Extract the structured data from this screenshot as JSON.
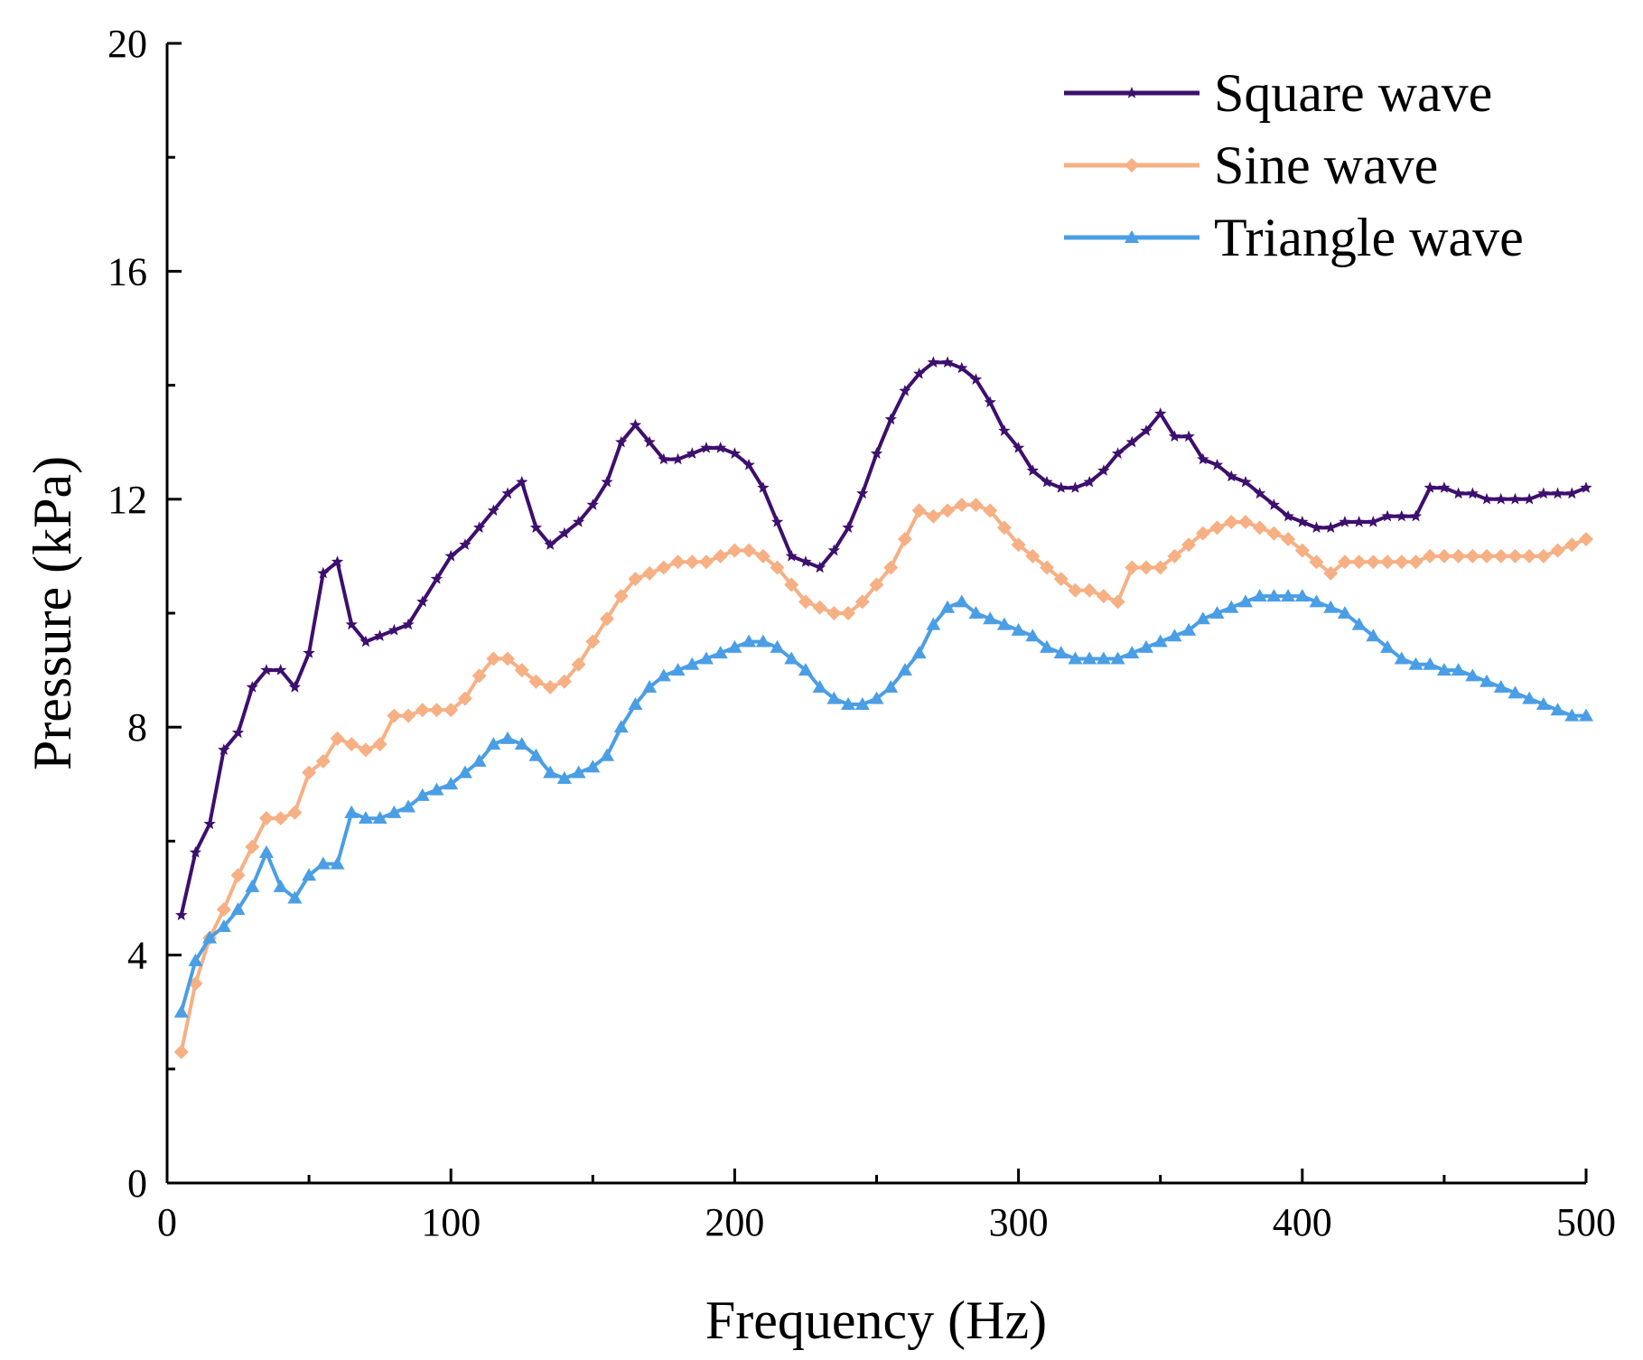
{
  "chart_data": {
    "type": "line",
    "title": "",
    "xlabel": "Frequency (Hz)",
    "ylabel": "Pressure (kPa)",
    "xlim": [
      0,
      500
    ],
    "ylim": [
      0,
      20
    ],
    "xticks": [
      0,
      100,
      200,
      300,
      400,
      500
    ],
    "yticks": [
      0,
      4,
      8,
      12,
      16,
      20
    ],
    "grid": false,
    "legend_position": "top-right",
    "x": [
      5,
      10,
      15,
      20,
      25,
      30,
      35,
      40,
      45,
      50,
      55,
      60,
      65,
      70,
      75,
      80,
      85,
      90,
      95,
      100,
      105,
      110,
      115,
      120,
      125,
      130,
      135,
      140,
      145,
      150,
      155,
      160,
      165,
      170,
      175,
      180,
      185,
      190,
      195,
      200,
      205,
      210,
      215,
      220,
      225,
      230,
      235,
      240,
      245,
      250,
      255,
      260,
      265,
      270,
      275,
      280,
      285,
      290,
      295,
      300,
      305,
      310,
      315,
      320,
      325,
      330,
      335,
      340,
      345,
      350,
      355,
      360,
      365,
      370,
      375,
      380,
      385,
      390,
      395,
      400,
      405,
      410,
      415,
      420,
      425,
      430,
      435,
      440,
      445,
      450,
      455,
      460,
      465,
      470,
      475,
      480,
      485,
      490,
      495,
      500
    ],
    "series": [
      {
        "name": "Square wave",
        "color": "#3d0f6e",
        "marker": "star",
        "values": [
          4.7,
          5.8,
          6.3,
          7.6,
          7.9,
          8.7,
          9.0,
          9.0,
          8.7,
          9.3,
          10.7,
          10.9,
          9.8,
          9.5,
          9.6,
          9.7,
          9.8,
          10.2,
          10.6,
          11.0,
          11.2,
          11.5,
          11.8,
          12.1,
          12.3,
          11.5,
          11.2,
          11.4,
          11.6,
          11.9,
          12.3,
          13.0,
          13.3,
          13.0,
          12.7,
          12.7,
          12.8,
          12.9,
          12.9,
          12.8,
          12.6,
          12.2,
          11.6,
          11.0,
          10.9,
          10.8,
          11.1,
          11.5,
          12.1,
          12.8,
          13.4,
          13.9,
          14.2,
          14.4,
          14.4,
          14.3,
          14.1,
          13.7,
          13.2,
          12.9,
          12.5,
          12.3,
          12.2,
          12.2,
          12.3,
          12.5,
          12.8,
          13.0,
          13.2,
          13.5,
          13.1,
          13.1,
          12.7,
          12.6,
          12.4,
          12.3,
          12.1,
          11.9,
          11.7,
          11.6,
          11.5,
          11.5,
          11.6,
          11.6,
          11.6,
          11.7,
          11.7,
          11.7,
          12.2,
          12.2,
          12.1,
          12.1,
          12.0,
          12.0,
          12.0,
          12.0,
          12.1,
          12.1,
          12.1,
          12.2
        ]
      },
      {
        "name": "Sine wave",
        "color": "#f6b084",
        "marker": "diamond",
        "values": [
          2.3,
          3.5,
          4.3,
          4.8,
          5.4,
          5.9,
          6.4,
          6.4,
          6.5,
          7.2,
          7.4,
          7.8,
          7.7,
          7.6,
          7.7,
          8.2,
          8.2,
          8.3,
          8.3,
          8.3,
          8.5,
          8.9,
          9.2,
          9.2,
          9.0,
          8.8,
          8.7,
          8.8,
          9.1,
          9.5,
          9.9,
          10.3,
          10.6,
          10.7,
          10.8,
          10.9,
          10.9,
          10.9,
          11.0,
          11.1,
          11.1,
          11.0,
          10.8,
          10.5,
          10.2,
          10.1,
          10.0,
          10.0,
          10.2,
          10.5,
          10.8,
          11.3,
          11.8,
          11.7,
          11.8,
          11.9,
          11.9,
          11.8,
          11.5,
          11.2,
          11.0,
          10.8,
          10.6,
          10.4,
          10.4,
          10.3,
          10.2,
          10.8,
          10.8,
          10.8,
          11.0,
          11.2,
          11.4,
          11.5,
          11.6,
          11.6,
          11.5,
          11.4,
          11.3,
          11.1,
          10.9,
          10.7,
          10.9,
          10.9,
          10.9,
          10.9,
          10.9,
          10.9,
          11.0,
          11.0,
          11.0,
          11.0,
          11.0,
          11.0,
          11.0,
          11.0,
          11.0,
          11.1,
          11.2,
          11.3
        ]
      },
      {
        "name": "Triangle wave",
        "color": "#4a9ee5",
        "marker": "triangle",
        "values": [
          3.0,
          3.9,
          4.3,
          4.5,
          4.8,
          5.2,
          5.8,
          5.2,
          5.0,
          5.4,
          5.6,
          5.6,
          6.5,
          6.4,
          6.4,
          6.5,
          6.6,
          6.8,
          6.9,
          7.0,
          7.2,
          7.4,
          7.7,
          7.8,
          7.7,
          7.5,
          7.2,
          7.1,
          7.2,
          7.3,
          7.5,
          8.0,
          8.4,
          8.7,
          8.9,
          9.0,
          9.1,
          9.2,
          9.3,
          9.4,
          9.5,
          9.5,
          9.4,
          9.2,
          9.0,
          8.7,
          8.5,
          8.4,
          8.4,
          8.5,
          8.7,
          9.0,
          9.3,
          9.8,
          10.1,
          10.2,
          10.0,
          9.9,
          9.8,
          9.7,
          9.6,
          9.4,
          9.3,
          9.2,
          9.2,
          9.2,
          9.2,
          9.3,
          9.4,
          9.5,
          9.6,
          9.7,
          9.9,
          10.0,
          10.1,
          10.2,
          10.3,
          10.3,
          10.3,
          10.3,
          10.2,
          10.1,
          10.0,
          9.8,
          9.6,
          9.4,
          9.2,
          9.1,
          9.1,
          9.0,
          9.0,
          8.9,
          8.8,
          8.7,
          8.6,
          8.5,
          8.4,
          8.3,
          8.2,
          8.2
        ]
      }
    ]
  }
}
